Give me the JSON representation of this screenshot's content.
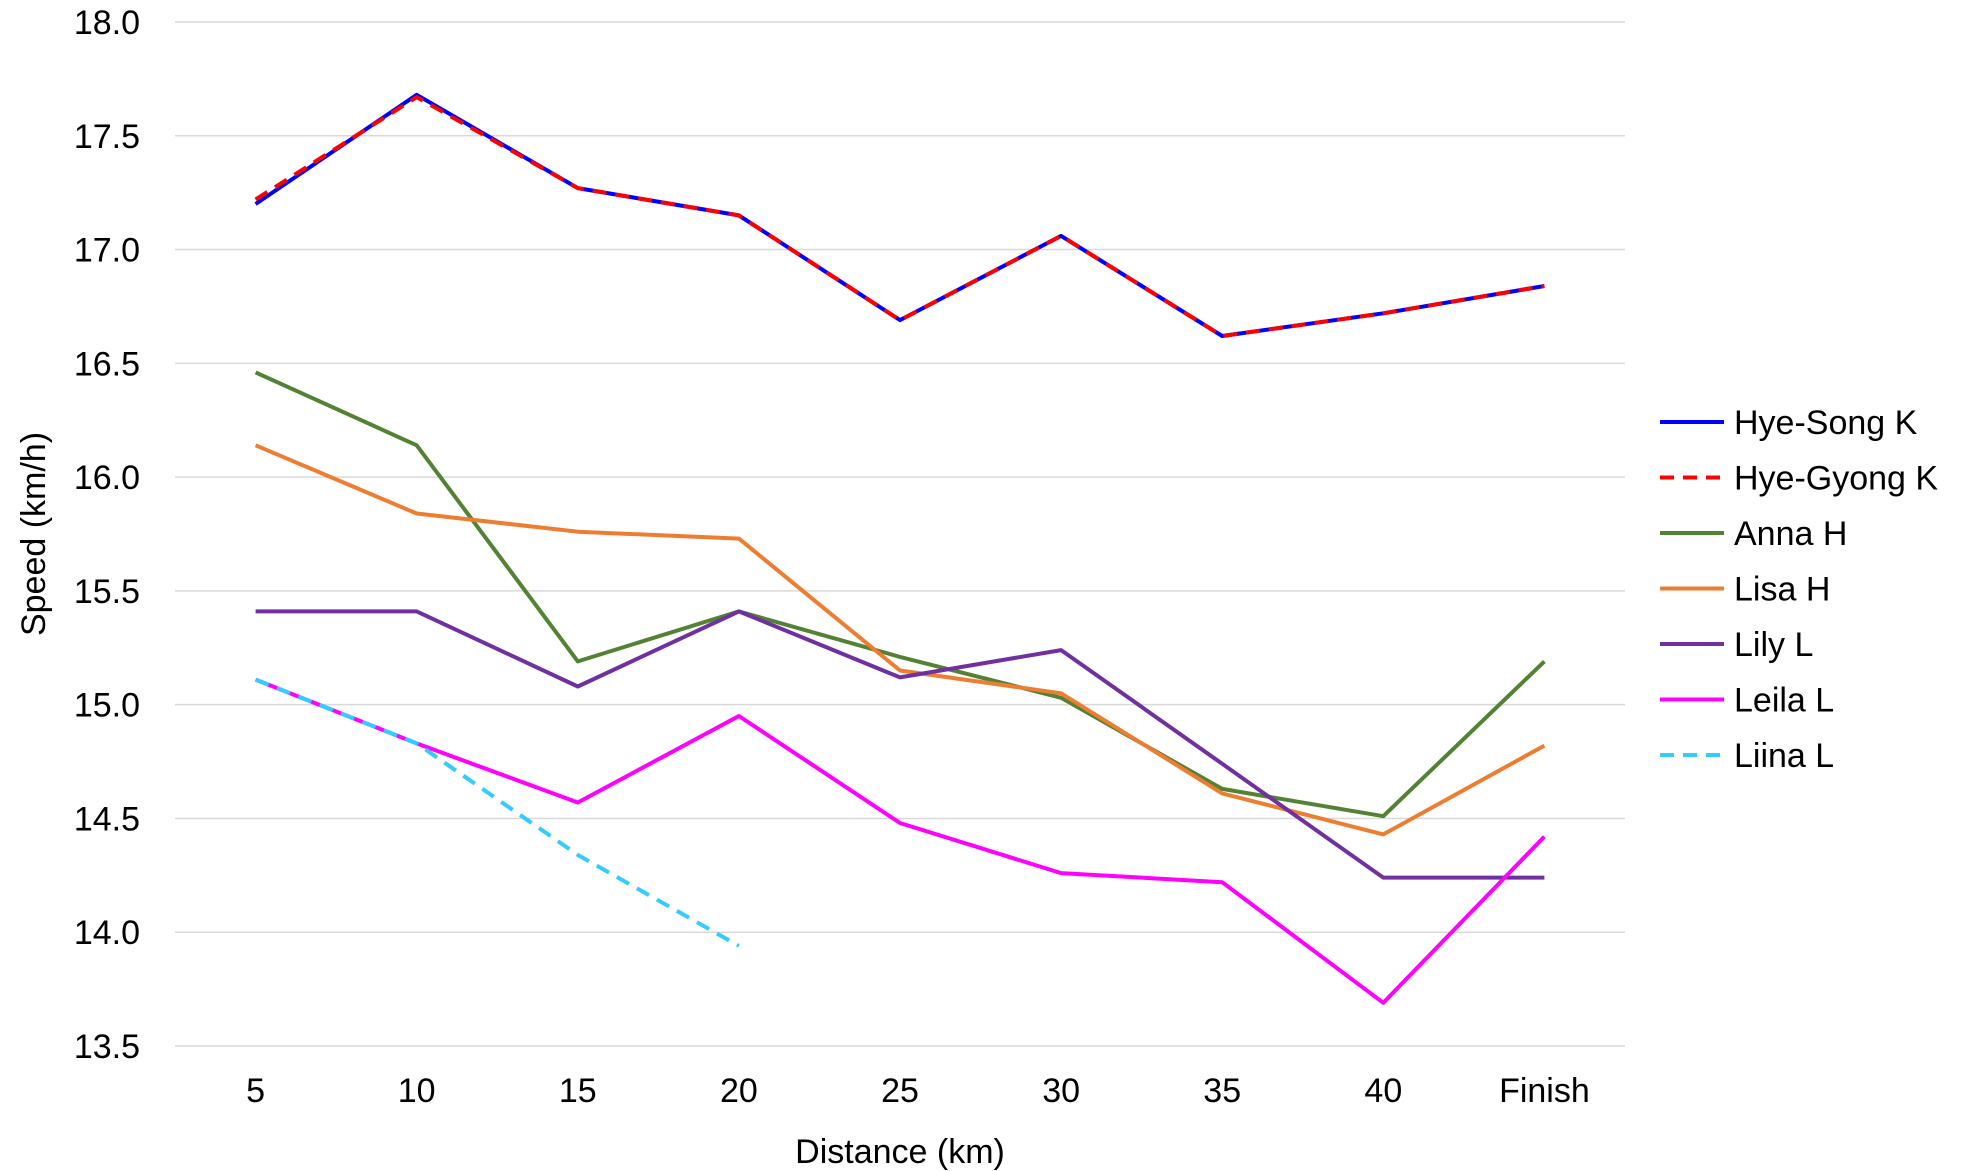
{
  "chart_data": {
    "type": "line",
    "title": "",
    "xlabel": "Distance (km)",
    "ylabel": "Speed (km/h)",
    "categories": [
      "5",
      "10",
      "15",
      "20",
      "25",
      "30",
      "35",
      "40",
      "Finish"
    ],
    "ylim": [
      13.5,
      18.0
    ],
    "yticks": [
      "13.5",
      "14.0",
      "14.5",
      "15.0",
      "15.5",
      "16.0",
      "16.5",
      "17.0",
      "17.5",
      "18.0"
    ],
    "grid": "horizontal",
    "legend_position": "right",
    "series": [
      {
        "name": "Hye-Song K",
        "color": "#0000ff",
        "dash": "solid",
        "values": [
          17.2,
          17.68,
          17.27,
          17.15,
          16.69,
          17.06,
          16.62,
          16.72,
          16.84
        ]
      },
      {
        "name": "Hye-Gyong K",
        "color": "#ff0000",
        "dash": "dashed",
        "values": [
          17.22,
          17.67,
          17.27,
          17.15,
          16.69,
          17.06,
          16.62,
          16.72,
          16.84
        ]
      },
      {
        "name": "Anna H",
        "color": "#548235",
        "dash": "solid",
        "values": [
          16.46,
          16.14,
          15.19,
          15.41,
          15.21,
          15.03,
          14.63,
          14.51,
          15.19
        ]
      },
      {
        "name": "Lisa H",
        "color": "#ed7d31",
        "dash": "solid",
        "values": [
          16.14,
          15.84,
          15.76,
          15.73,
          15.15,
          15.05,
          14.61,
          14.43,
          14.82
        ]
      },
      {
        "name": "Lily L",
        "color": "#7030a0",
        "dash": "solid",
        "values": [
          15.41,
          15.41,
          15.08,
          15.41,
          15.12,
          15.24,
          14.74,
          14.24,
          14.24
        ]
      },
      {
        "name": "Leila L",
        "color": "#ff00ff",
        "dash": "solid",
        "values": [
          15.11,
          14.83,
          14.57,
          14.95,
          14.48,
          14.26,
          14.22,
          13.69,
          14.42
        ]
      },
      {
        "name": "Liina L",
        "color": "#33ccff",
        "dash": "dashed",
        "values": [
          15.11,
          14.83,
          14.34,
          13.94,
          null,
          null,
          null,
          null,
          null
        ]
      }
    ]
  }
}
